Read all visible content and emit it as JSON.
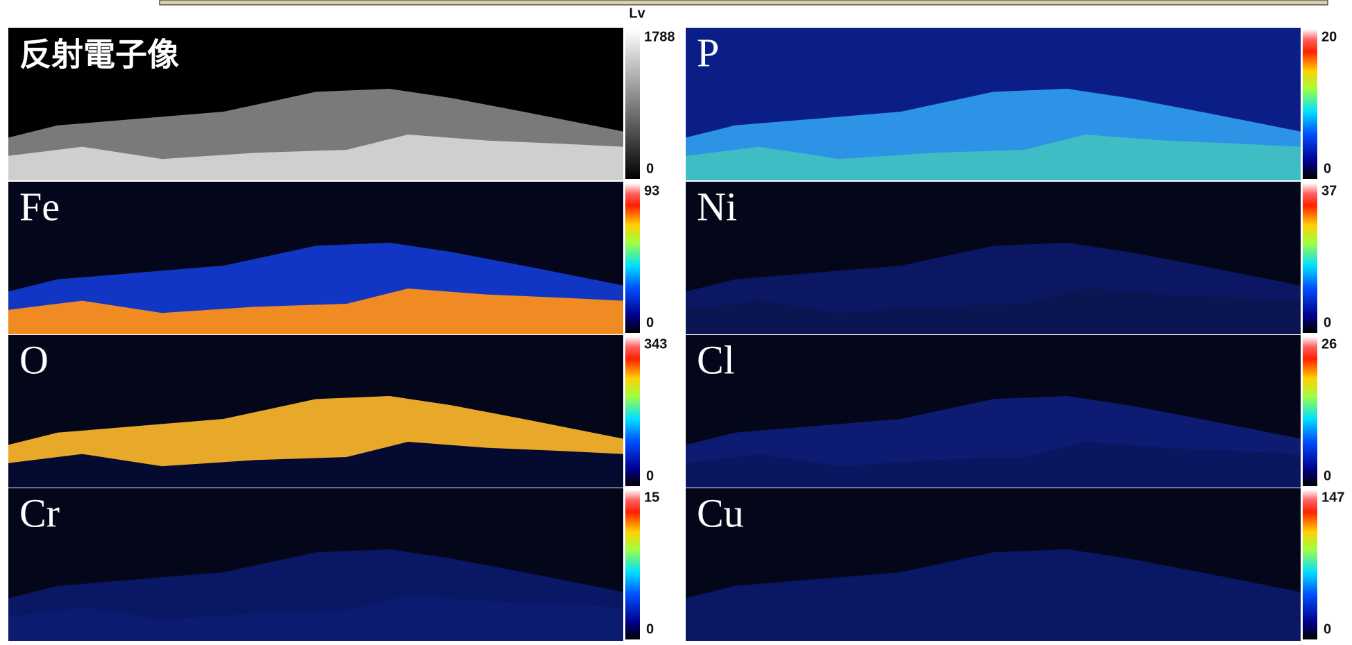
{
  "header": {
    "unit_label": "Lv"
  },
  "panels": [
    {
      "label": "反射電子像",
      "scale_max": 1788,
      "scale_min": 0
    },
    {
      "label": "P",
      "scale_max": 20,
      "scale_min": 0
    },
    {
      "label": "Fe",
      "scale_max": 93,
      "scale_min": 0
    },
    {
      "label": "Ni",
      "scale_max": 37,
      "scale_min": 0
    },
    {
      "label": "O",
      "scale_max": 343,
      "scale_min": 0
    },
    {
      "label": "Cl",
      "scale_max": 26,
      "scale_min": 0
    },
    {
      "label": "Cr",
      "scale_max": 15,
      "scale_min": 0
    },
    {
      "label": "Cu",
      "scale_max": 147,
      "scale_min": 0
    }
  ]
}
